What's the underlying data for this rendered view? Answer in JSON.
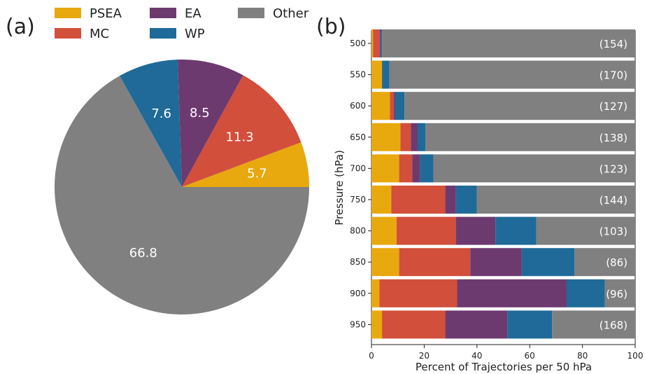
{
  "figure": {
    "panel_a_label": "(a)",
    "panel_b_label": "(b)"
  },
  "chart_data": [
    {
      "panel": "(a)",
      "type": "pie",
      "labels": [
        "PSEA",
        "MC",
        "EA",
        "WP",
        "Other"
      ],
      "values": [
        5.7,
        11.3,
        8.5,
        7.6,
        66.8
      ],
      "value_labels": [
        "5.7",
        "11.3",
        "8.5",
        "7.6",
        "66.8"
      ],
      "colors": [
        "#e8a90e",
        "#d14f3b",
        "#6d3a70",
        "#1f6a98",
        "#808080"
      ],
      "legend": {
        "placement": "top",
        "entries": [
          "PSEA",
          "EA",
          "Other",
          "MC",
          "WP"
        ],
        "entry_colors": [
          "#e8a90e",
          "#6d3a70",
          "#808080",
          "#d14f3b",
          "#1f6a98"
        ]
      }
    },
    {
      "panel": "(b)",
      "type": "bar",
      "orientation": "horizontal",
      "stacked": true,
      "xlabel": "Percent of Trajectories per 50 hPa",
      "ylabel": "Pressure (hPa)",
      "xlim": [
        0,
        100
      ],
      "xticks": [
        "0",
        "20",
        "40",
        "60",
        "80",
        "100"
      ],
      "categories": [
        "500",
        "550",
        "600",
        "650",
        "700",
        "750",
        "800",
        "850",
        "900",
        "950"
      ],
      "series": [
        {
          "name": "PSEA",
          "color": "#e8a90e",
          "values": [
            0.6,
            4.0,
            7.0,
            11.0,
            10.5,
            7.5,
            9.5,
            10.5,
            3.0,
            4.0
          ]
        },
        {
          "name": "MC",
          "color": "#d14f3b",
          "values": [
            2.5,
            0.0,
            1.5,
            4.0,
            5.0,
            20.5,
            22.5,
            27.0,
            29.5,
            24.0
          ]
        },
        {
          "name": "EA",
          "color": "#6d3a70",
          "values": [
            0.4,
            0.0,
            0.5,
            2.5,
            3.0,
            4.0,
            15.0,
            19.5,
            41.5,
            23.5
          ]
        },
        {
          "name": "WP",
          "color": "#1f6a98",
          "values": [
            0.5,
            2.8,
            3.5,
            3.0,
            5.0,
            8.0,
            15.5,
            20.0,
            14.5,
            17.0
          ]
        },
        {
          "name": "Other",
          "color": "#808080",
          "values": [
            96.0,
            93.2,
            87.5,
            79.5,
            76.5,
            60.0,
            37.5,
            23.0,
            11.5,
            31.5
          ]
        }
      ],
      "counts": [
        "(154)",
        "(170)",
        "(127)",
        "(138)",
        "(123)",
        "(144)",
        "(103)",
        "(86)",
        "(96)",
        "(168)"
      ],
      "grid": false,
      "legend": "none"
    }
  ]
}
